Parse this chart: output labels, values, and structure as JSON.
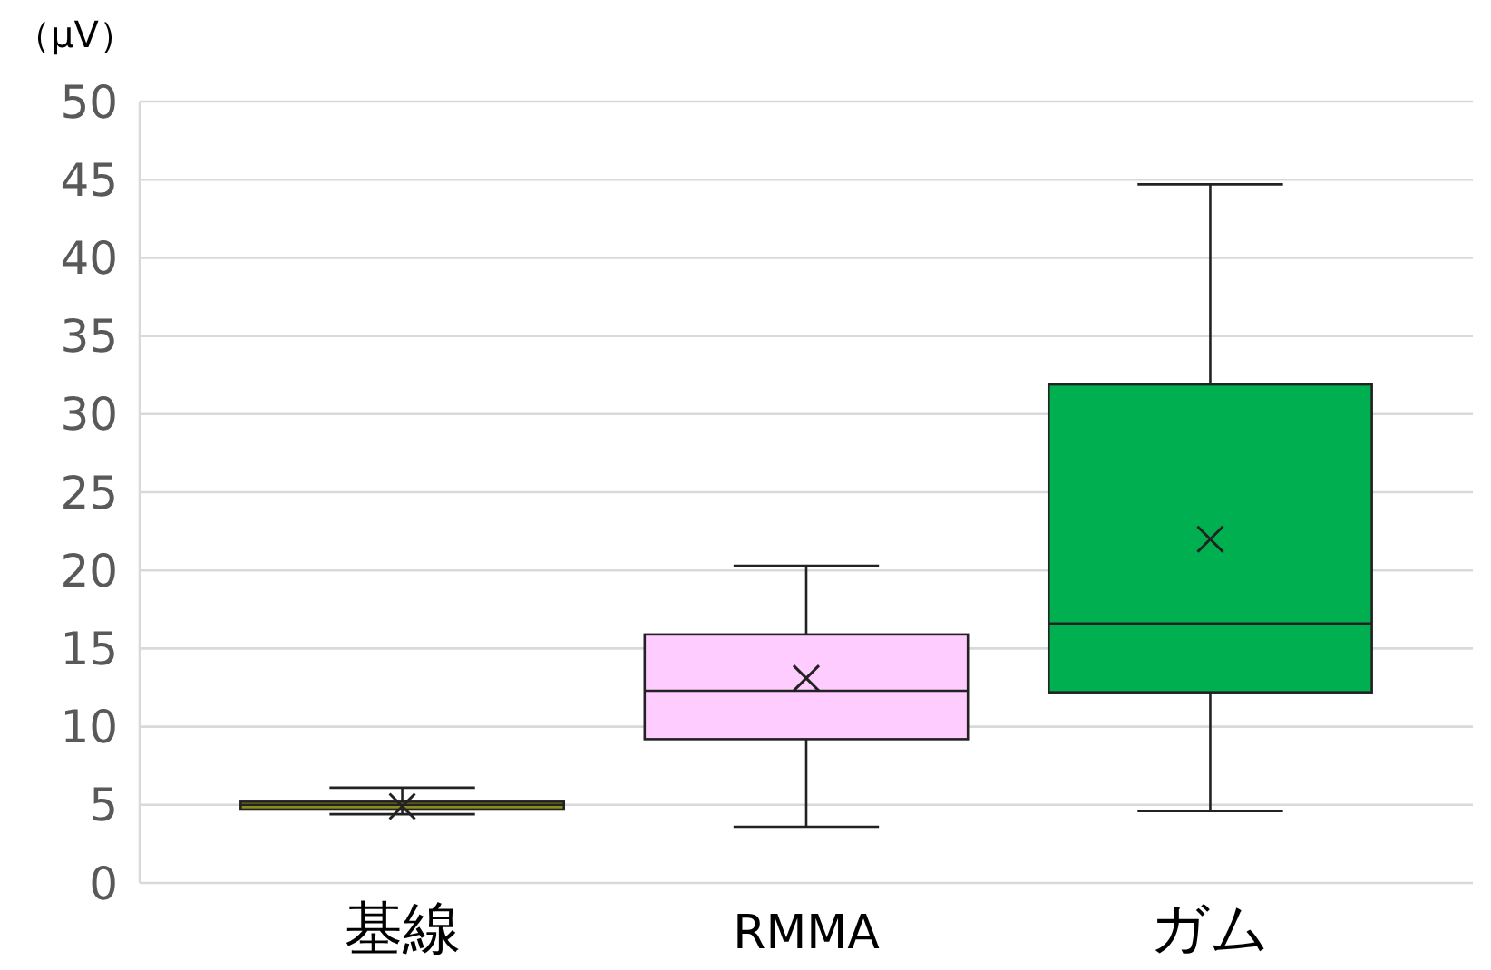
{
  "chart_data": {
    "type": "box",
    "ylabel": "（μV）",
    "categories": [
      "基線",
      "RMMA",
      "ガム"
    ],
    "boxes": [
      {
        "low": 4.4,
        "q1": 4.7,
        "median": 5.0,
        "q3": 5.2,
        "high": 6.1,
        "mean": 4.9
      },
      {
        "low": 3.6,
        "q1": 9.2,
        "median": 12.3,
        "q3": 15.9,
        "high": 20.3,
        "mean": 13.1
      },
      {
        "low": 4.6,
        "q1": 12.2,
        "median": 16.6,
        "q3": 31.9,
        "high": 44.7,
        "mean": 22.0
      }
    ],
    "colors": [
      "#8b8b1a",
      "#ffccff",
      "#00b050"
    ],
    "ylim": [
      0,
      50
    ],
    "yticks": [
      0,
      5,
      10,
      15,
      20,
      25,
      30,
      35,
      40,
      45,
      50
    ],
    "grid": "y"
  }
}
